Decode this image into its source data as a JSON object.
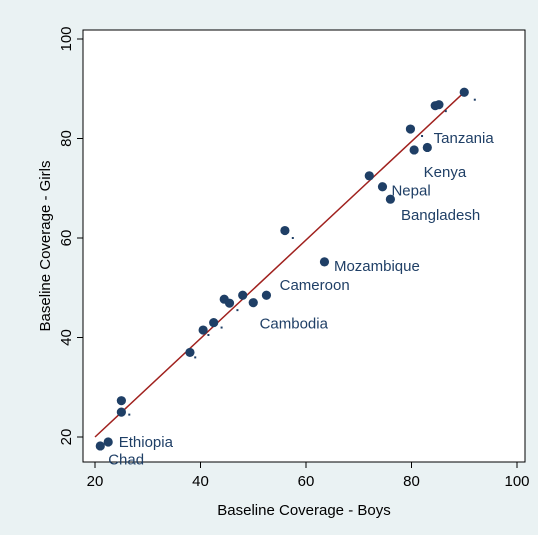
{
  "chart_data": {
    "type": "scatter",
    "title": "",
    "xlabel": "Baseline Coverage - Boys",
    "ylabel": "Baseline Coverage - Girls",
    "xlim": [
      20,
      100
    ],
    "ylim": [
      20,
      100
    ],
    "xticks": [
      20,
      40,
      60,
      80,
      100
    ],
    "yticks": [
      20,
      40,
      60,
      80,
      100
    ],
    "grid": false,
    "legend": "none",
    "marker_color": "#1f3f66",
    "label_color": "#1f3f66",
    "line_color": "#a0211e",
    "plot_background": "#ffffff",
    "page_background": "#eaf2f3",
    "fit_line": {
      "x": [
        20,
        90
      ],
      "y": [
        20,
        89.3
      ]
    },
    "points": [
      {
        "x": 21.0,
        "y": 18.2
      },
      {
        "x": 22.5,
        "y": 19.0
      },
      {
        "x": 25.0,
        "y": 27.3
      },
      {
        "x": 25.0,
        "y": 25.0
      },
      {
        "x": 38.0,
        "y": 37.0
      },
      {
        "x": 40.5,
        "y": 41.5
      },
      {
        "x": 42.5,
        "y": 43.0
      },
      {
        "x": 44.5,
        "y": 47.7
      },
      {
        "x": 45.5,
        "y": 46.9
      },
      {
        "x": 48.0,
        "y": 48.5
      },
      {
        "x": 50.0,
        "y": 47.0
      },
      {
        "x": 52.5,
        "y": 48.5
      },
      {
        "x": 56.0,
        "y": 61.5
      },
      {
        "x": 63.5,
        "y": 55.2
      },
      {
        "x": 72.0,
        "y": 72.5
      },
      {
        "x": 74.5,
        "y": 70.3
      },
      {
        "x": 76.0,
        "y": 67.8
      },
      {
        "x": 79.8,
        "y": 81.9
      },
      {
        "x": 80.5,
        "y": 77.7
      },
      {
        "x": 83.0,
        "y": 78.2
      },
      {
        "x": 84.5,
        "y": 86.6
      },
      {
        "x": 85.2,
        "y": 86.8
      },
      {
        "x": 90.0,
        "y": 89.3
      }
    ],
    "dots": [
      {
        "x": 26.5,
        "y": 24.5
      },
      {
        "x": 39.0,
        "y": 36.0
      },
      {
        "x": 41.5,
        "y": 40.5
      },
      {
        "x": 44.0,
        "y": 42.0
      },
      {
        "x": 47.0,
        "y": 45.5
      },
      {
        "x": 57.5,
        "y": 60.0
      },
      {
        "x": 82.0,
        "y": 80.5
      },
      {
        "x": 86.5,
        "y": 85.5
      },
      {
        "x": 92.0,
        "y": 87.8
      }
    ],
    "annotations": [
      {
        "text": "Ethiopia",
        "x": 24.5,
        "y": 19.0
      },
      {
        "text": "Chad",
        "x": 22.5,
        "y": 15.5
      },
      {
        "text": "Cambodia",
        "x": 51.2,
        "y": 42.8
      },
      {
        "text": "Cameroon",
        "x": 55.0,
        "y": 50.6
      },
      {
        "text": "Mozambique",
        "x": 65.3,
        "y": 54.4
      },
      {
        "text": "Nepal",
        "x": 76.2,
        "y": 69.5
      },
      {
        "text": "Bangladesh",
        "x": 78.0,
        "y": 64.6
      },
      {
        "text": "Kenya",
        "x": 82.3,
        "y": 73.3
      },
      {
        "text": "Tanzania",
        "x": 84.2,
        "y": 80.1
      }
    ]
  }
}
